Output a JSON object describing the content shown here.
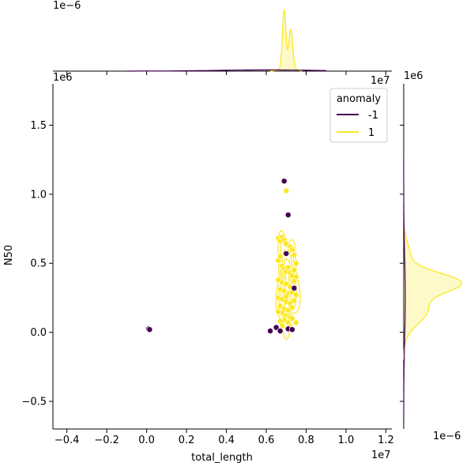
{
  "chart_data": {
    "type": "scatter",
    "title": "",
    "xlabel": "total_length",
    "ylabel": "N50",
    "x_offset_text": "1e7",
    "y_offset_text": "1e6",
    "xlim": [
      -0.47,
      1.23
    ],
    "ylim": [
      -0.7,
      1.8
    ],
    "x_ticks": [
      {
        "value": -0.4,
        "label": "−0.4"
      },
      {
        "value": -0.2,
        "label": "−0.2"
      },
      {
        "value": 0.0,
        "label": "0.0"
      },
      {
        "value": 0.2,
        "label": "0.2"
      },
      {
        "value": 0.4,
        "label": "0.4"
      },
      {
        "value": 0.6,
        "label": "0.6"
      },
      {
        "value": 0.8,
        "label": "0.8"
      },
      {
        "value": 1.0,
        "label": "1.0"
      },
      {
        "value": 1.2,
        "label": "1.2"
      }
    ],
    "y_ticks": [
      {
        "value": -0.5,
        "label": "−0.5"
      },
      {
        "value": 0.0,
        "label": "0.0"
      },
      {
        "value": 0.5,
        "label": "0.5"
      },
      {
        "value": 1.0,
        "label": "1.0"
      },
      {
        "value": 1.5,
        "label": "1.5"
      }
    ],
    "legend": {
      "title": "anomaly",
      "position": "upper-right",
      "entries": [
        {
          "label": "-1",
          "color": "#440154"
        },
        {
          "label": "1",
          "color": "#fde725"
        }
      ]
    },
    "series": [
      {
        "name": "-1",
        "color": "#440154",
        "x": [
          0.01,
          0.015,
          0.69,
          0.71,
          0.62,
          0.65,
          0.67,
          0.71,
          0.73,
          0.7,
          0.74
        ],
        "y": [
          0.025,
          0.02,
          1.095,
          0.85,
          0.01,
          0.035,
          0.01,
          0.025,
          0.02,
          0.57,
          0.32
        ]
      },
      {
        "name": "1",
        "color": "#fde725",
        "x": [
          0.7,
          0.66,
          0.67,
          0.68,
          0.69,
          0.7,
          0.71,
          0.72,
          0.73,
          0.74,
          0.75,
          0.66,
          0.67,
          0.68,
          0.69,
          0.7,
          0.71,
          0.72,
          0.73,
          0.74,
          0.75,
          0.66,
          0.68,
          0.7,
          0.72,
          0.74,
          0.67,
          0.69,
          0.71,
          0.73,
          0.75,
          0.66,
          0.68,
          0.7,
          0.72,
          0.74,
          0.67,
          0.69,
          0.71,
          0.73,
          0.68,
          0.7,
          0.72,
          0.69,
          0.71,
          0.67,
          0.73,
          0.68,
          0.72,
          0.75,
          0.66,
          0.7
        ],
        "y": [
          1.025,
          0.68,
          0.66,
          0.69,
          0.67,
          0.64,
          0.58,
          0.62,
          0.6,
          0.56,
          0.5,
          0.52,
          0.55,
          0.48,
          0.46,
          0.44,
          0.47,
          0.43,
          0.41,
          0.45,
          0.4,
          0.38,
          0.36,
          0.35,
          0.33,
          0.37,
          0.31,
          0.3,
          0.28,
          0.29,
          0.27,
          0.25,
          0.24,
          0.22,
          0.21,
          0.23,
          0.19,
          0.17,
          0.16,
          0.18,
          0.14,
          0.12,
          0.11,
          0.09,
          0.07,
          0.08,
          0.1,
          0.05,
          0.04,
          0.07,
          0.15,
          0.26
        ]
      }
    ],
    "kde_contour_color": "#fde725",
    "top_marginal": {
      "offset_text": "1e−6",
      "description": "density of total_length per anomaly group"
    },
    "right_marginal": {
      "offset_text": "1e−6",
      "description": "density of N50 per anomaly group"
    }
  }
}
